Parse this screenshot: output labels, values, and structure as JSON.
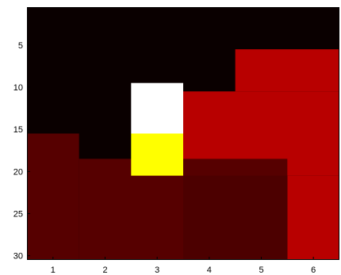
{
  "chart_data": {
    "type": "heatmap",
    "title": "",
    "xlabel": "",
    "ylabel": "",
    "x_range": [
      0.5,
      6.5
    ],
    "y_range": [
      0.5,
      30.5
    ],
    "y_direction": "down",
    "x_ticks": [
      "1",
      "2",
      "3",
      "4",
      "5",
      "6"
    ],
    "y_ticks": [
      "5",
      "10",
      "15",
      "20",
      "25",
      "30"
    ],
    "colormap": "hot",
    "regions": [
      {
        "label": "black",
        "color": "#0a0000",
        "x": [
          0.5,
          6.5
        ],
        "y": [
          0.5,
          30.5
        ]
      },
      {
        "label": "red-1",
        "color": "#b80000",
        "x": [
          4.5,
          6.5
        ],
        "y": [
          5.5,
          10.5
        ]
      },
      {
        "label": "red-2",
        "color": "#b80000",
        "x": [
          3.5,
          6.5
        ],
        "y": [
          10.5,
          20.5
        ]
      },
      {
        "label": "red-3",
        "color": "#b80000",
        "x": [
          5.5,
          6.5
        ],
        "y": [
          20.5,
          30.5
        ]
      },
      {
        "label": "dark-red-1",
        "color": "#560000",
        "x": [
          0.5,
          1.5
        ],
        "y": [
          15.5,
          30.5
        ]
      },
      {
        "label": "dark-red-2",
        "color": "#560000",
        "x": [
          1.5,
          5.5
        ],
        "y": [
          18.5,
          30.5
        ]
      },
      {
        "label": "dark-red-3",
        "color": "#4c0000",
        "x": [
          3.5,
          5.5
        ],
        "y": [
          20.5,
          30.5
        ]
      },
      {
        "label": "white",
        "color": "#ffffff",
        "x": [
          2.5,
          3.5
        ],
        "y": [
          9.5,
          15.5
        ]
      },
      {
        "label": "yellow",
        "color": "#ffff00",
        "x": [
          2.5,
          3.5
        ],
        "y": [
          15.5,
          20.5
        ]
      }
    ]
  }
}
